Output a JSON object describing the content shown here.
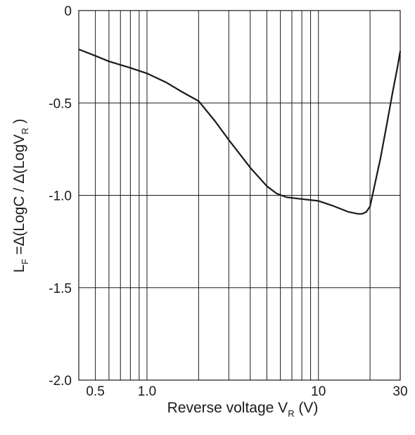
{
  "chart_data": {
    "type": "line",
    "title": "",
    "xlabel": "Reverse voltage V",
    "xlabel_sub": "R",
    "xlabel_unit": " (V)",
    "ylabel_parts": [
      "L",
      "F",
      " =Δ(LogC / Δ(LogV",
      "R",
      " )"
    ],
    "x_scale": "log",
    "xlim": [
      0.4,
      30
    ],
    "ylim": [
      -2.0,
      0
    ],
    "x_ticks": [
      {
        "value": 0.5,
        "label": "0.5"
      },
      {
        "value": 1.0,
        "label": "1.0"
      },
      {
        "value": 10,
        "label": "10"
      },
      {
        "value": 30,
        "label": "30"
      }
    ],
    "y_ticks": [
      {
        "value": 0,
        "label": "0"
      },
      {
        "value": -0.5,
        "label": "-0.5"
      },
      {
        "value": -1.0,
        "label": "-1.0"
      },
      {
        "value": -1.5,
        "label": "-1.5"
      },
      {
        "value": -2.0,
        "label": "-2.0"
      }
    ],
    "x_gridlines": [
      0.4,
      0.5,
      0.6,
      0.7,
      0.8,
      0.9,
      1,
      2,
      3,
      4,
      5,
      6,
      7,
      8,
      9,
      10,
      20,
      30
    ],
    "y_gridlines": [
      0,
      -0.5,
      -1.0,
      -1.5,
      -2.0
    ],
    "grid": true,
    "series": [
      {
        "color": "#1a1a1a",
        "points": [
          [
            0.4,
            -0.21
          ],
          [
            0.5,
            -0.245
          ],
          [
            0.6,
            -0.275
          ],
          [
            0.8,
            -0.31
          ],
          [
            1.0,
            -0.34
          ],
          [
            1.3,
            -0.39
          ],
          [
            1.6,
            -0.44
          ],
          [
            2.0,
            -0.49
          ],
          [
            2.5,
            -0.6
          ],
          [
            3.0,
            -0.7
          ],
          [
            3.5,
            -0.78
          ],
          [
            4.0,
            -0.85
          ],
          [
            5.0,
            -0.95
          ],
          [
            5.7,
            -0.99
          ],
          [
            6.5,
            -1.01
          ],
          [
            8.0,
            -1.02
          ],
          [
            10.0,
            -1.03
          ],
          [
            12.0,
            -1.055
          ],
          [
            15.0,
            -1.09
          ],
          [
            17.0,
            -1.1
          ],
          [
            18.0,
            -1.1
          ],
          [
            19.0,
            -1.09
          ],
          [
            20.0,
            -1.06
          ],
          [
            21.0,
            -0.97
          ],
          [
            23.0,
            -0.8
          ],
          [
            25.0,
            -0.62
          ],
          [
            27.0,
            -0.45
          ],
          [
            29.0,
            -0.3
          ],
          [
            30.0,
            -0.22
          ]
        ]
      }
    ]
  }
}
